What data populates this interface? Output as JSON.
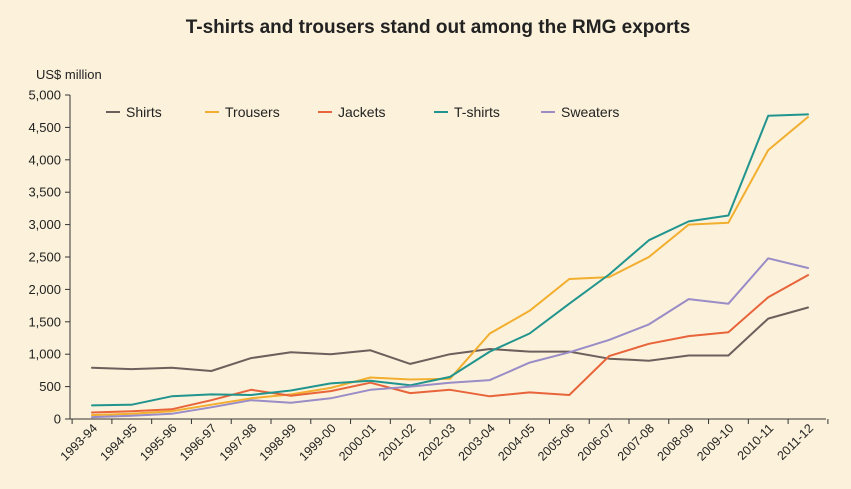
{
  "chart_data": {
    "type": "line",
    "title": "T-shirts and trousers stand out among the RMG exports",
    "ylabel": "US$ million",
    "xlabel": "",
    "ylim": [
      0,
      5000
    ],
    "yticks": [
      0,
      500,
      1000,
      1500,
      2000,
      2500,
      3000,
      3500,
      4000,
      4500,
      5000
    ],
    "ytick_labels": [
      "0",
      "500",
      "1,000",
      "1,500",
      "2,000",
      "2,500",
      "3,000",
      "3,500",
      "4,000",
      "4,500",
      "5,000"
    ],
    "grid": false,
    "legend_position": "top-left",
    "categories": [
      "1993-94",
      "1994-95",
      "1995-96",
      "1996-97",
      "1997-98",
      "1998-99",
      "1999-00",
      "2000-01",
      "2001-02",
      "2002-03",
      "2003-04",
      "2004-05",
      "2005-06",
      "2006-07",
      "2007-08",
      "2008-09",
      "2009-10",
      "2010-11",
      "2011-12"
    ],
    "series": [
      {
        "name": "Shirts",
        "color": "#6d5f5c",
        "values": [
          790,
          770,
          790,
          740,
          940,
          1030,
          1000,
          1060,
          850,
          1000,
          1080,
          1040,
          1040,
          930,
          900,
          980,
          980,
          1550,
          1720
        ]
      },
      {
        "name": "Trousers",
        "color": "#f2ae2e",
        "values": [
          60,
          80,
          120,
          220,
          320,
          380,
          480,
          640,
          610,
          620,
          1320,
          1670,
          2160,
          2190,
          2500,
          3000,
          3030,
          4150,
          4660
        ]
      },
      {
        "name": "Jackets",
        "color": "#e8643a",
        "values": [
          100,
          120,
          150,
          290,
          450,
          360,
          430,
          560,
          400,
          450,
          350,
          410,
          370,
          970,
          1160,
          1280,
          1340,
          1880,
          2220
        ]
      },
      {
        "name": "T-shirts",
        "color": "#21948e",
        "values": [
          210,
          220,
          350,
          380,
          370,
          440,
          550,
          590,
          520,
          650,
          1040,
          1320,
          1780,
          2230,
          2760,
          3050,
          3140,
          4680,
          4700
        ]
      },
      {
        "name": "Sweaters",
        "color": "#9a8cc7",
        "values": [
          30,
          50,
          80,
          180,
          290,
          250,
          320,
          450,
          500,
          560,
          600,
          870,
          1030,
          1220,
          1460,
          1850,
          1780,
          2480,
          2330
        ]
      }
    ]
  }
}
